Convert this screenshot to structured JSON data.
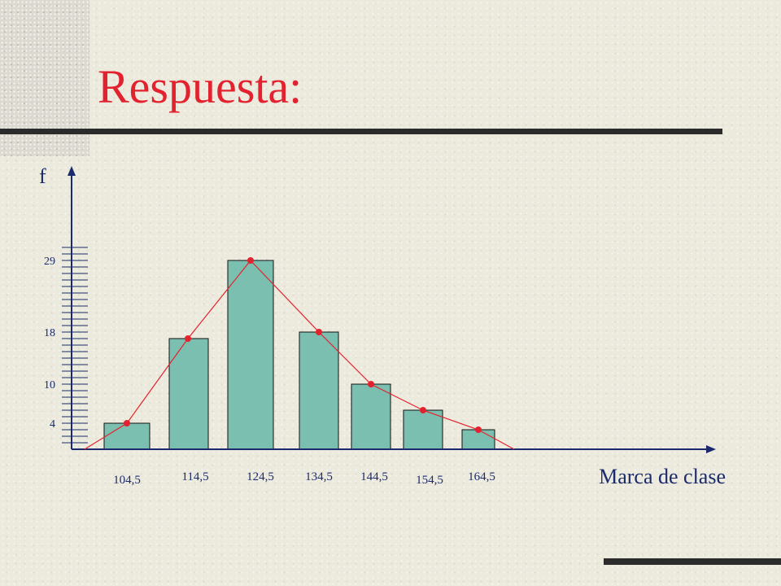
{
  "slide": {
    "title": "Respuesta:"
  },
  "chart_data": {
    "type": "bar",
    "overlay": "frequency-polygon",
    "xlabel": "Marca de clase",
    "ylabel": "f",
    "categories": [
      "104,5",
      "114,5",
      "124,5",
      "134,5",
      "144,5",
      "154,5",
      "164,5"
    ],
    "values": [
      4,
      17,
      29,
      18,
      10,
      6,
      3
    ],
    "ytick_labels": [
      "29",
      "18",
      "10",
      "4"
    ],
    "ytick_values": [
      29,
      18,
      10,
      4
    ],
    "ylim": [
      0,
      40
    ],
    "colors": {
      "bar_fill": "#7bbfb0",
      "polygon": "#e3222f",
      "title": "#e3222f",
      "axis": "#1a2a6c"
    }
  }
}
